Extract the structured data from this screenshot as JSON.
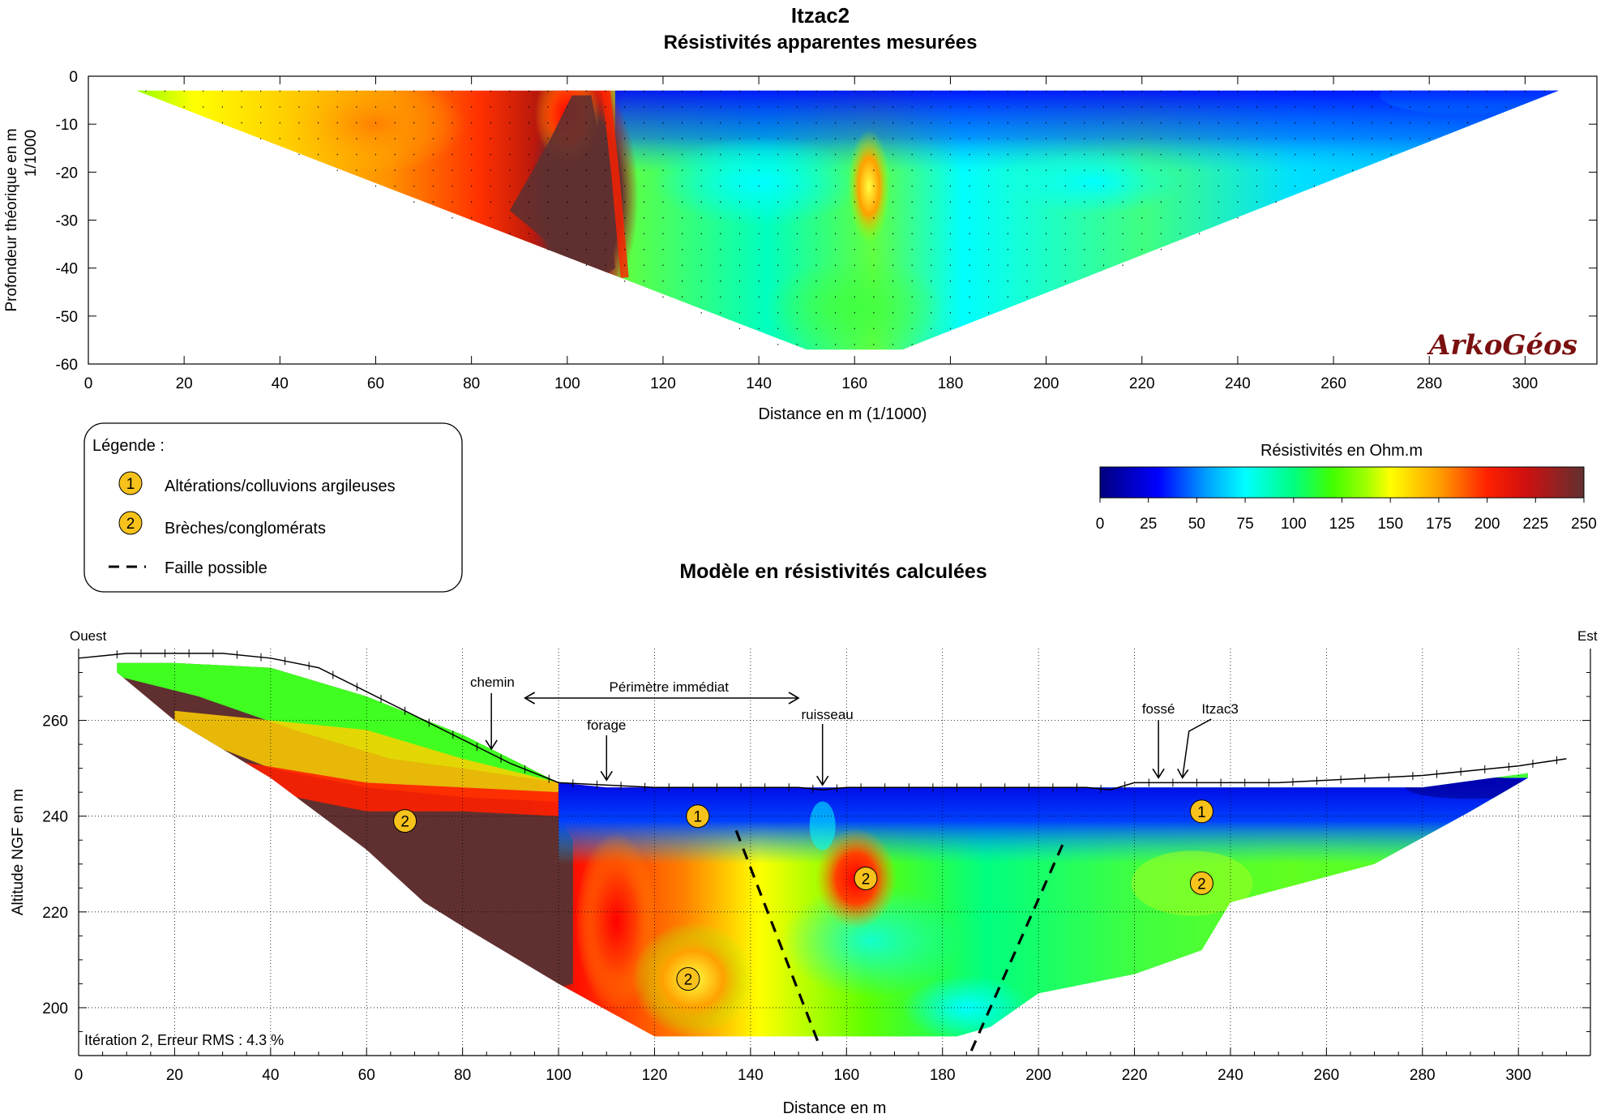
{
  "header": {
    "title": "Itzac2",
    "subtitle_top": "Résistivités apparentes mesurées",
    "subtitle_bottom": "Modèle en résistivités calculées",
    "logo": "ArkoGéos"
  },
  "colors": {
    "scale": [
      "#00007f",
      "#0000ff",
      "#00a0ff",
      "#00ffff",
      "#00ff80",
      "#40ff00",
      "#a0ff00",
      "#ffff00",
      "#ffa000",
      "#ff4000",
      "#ff0000",
      "#a01010",
      "#603030"
    ],
    "frame": "#000000"
  },
  "chart_data": [
    {
      "type": "heatmap",
      "title": "Résistivités apparentes mesurées",
      "xlabel": "Distance en m (1/1000)",
      "ylabel": "Profondeur théorique en m",
      "ylabel2": "1/1000",
      "xlim": [
        0,
        315
      ],
      "ylim": [
        -60,
        0
      ],
      "xticks": [
        0,
        20,
        40,
        60,
        80,
        100,
        120,
        140,
        160,
        180,
        200,
        220,
        240,
        260,
        280,
        300
      ],
      "yticks": [
        0,
        -10,
        -20,
        -30,
        -40,
        -50,
        -60
      ],
      "xticklabels": [
        "0",
        "20",
        "40",
        "60",
        "80",
        "100",
        "120",
        "140",
        "160",
        "180",
        "200",
        "220",
        "240",
        "260",
        "280",
        "300"
      ],
      "yticklabels": [
        "0",
        "-10",
        "-20",
        "-30",
        "-40",
        "-50",
        "-60"
      ],
      "section_outline": [
        [
          10,
          -3
        ],
        [
          307,
          -3
        ],
        [
          170,
          -57
        ],
        [
          150,
          -57
        ]
      ],
      "anomalies": [
        {
          "x": 103,
          "y": -25,
          "value": 250
        },
        {
          "x": 100,
          "y": -8,
          "value": 210
        },
        {
          "x": 60,
          "y": -10,
          "value": 170
        },
        {
          "x": 163,
          "y": -23,
          "value": 150
        },
        {
          "x": 290,
          "y": -4,
          "value": 10
        }
      ]
    },
    {
      "type": "heatmap",
      "title": "Modèle en résistivités calculées",
      "xlabel": "Distance en m",
      "ylabel": "Altitude NGF en m",
      "xlim": [
        0,
        315
      ],
      "ylim": [
        190,
        275
      ],
      "xticks": [
        0,
        20,
        40,
        60,
        80,
        100,
        120,
        140,
        160,
        180,
        200,
        220,
        240,
        260,
        280,
        300
      ],
      "yticks": [
        200,
        220,
        240,
        260
      ],
      "xticklabels": [
        "0",
        "20",
        "40",
        "60",
        "80",
        "100",
        "120",
        "140",
        "160",
        "180",
        "200",
        "220",
        "240",
        "260",
        "280",
        "300"
      ],
      "yticklabels": [
        "200",
        "220",
        "240",
        "260"
      ],
      "annotation_rms": "Itération 2, Erreur RMS : 4.3 %",
      "labels": {
        "west": "Ouest",
        "east": "Est",
        "chemin": "chemin",
        "perimetre": "Périmètre immédiat",
        "forage": "forage",
        "ruisseau": "ruisseau",
        "fosse": "fossé",
        "itzac3": "Itzac3"
      },
      "topography": [
        [
          0,
          273
        ],
        [
          10,
          274
        ],
        [
          20,
          274
        ],
        [
          30,
          274
        ],
        [
          40,
          273
        ],
        [
          50,
          271
        ],
        [
          60,
          266
        ],
        [
          70,
          261
        ],
        [
          80,
          256
        ],
        [
          90,
          251
        ],
        [
          100,
          247
        ],
        [
          110,
          246.5
        ],
        [
          120,
          246
        ],
        [
          130,
          246
        ],
        [
          140,
          246
        ],
        [
          150,
          246
        ],
        [
          155,
          245.5
        ],
        [
          160,
          246
        ],
        [
          170,
          246
        ],
        [
          180,
          246
        ],
        [
          190,
          246
        ],
        [
          200,
          246
        ],
        [
          210,
          246
        ],
        [
          215,
          245.5
        ],
        [
          220,
          247
        ],
        [
          230,
          247
        ],
        [
          240,
          247
        ],
        [
          250,
          247
        ],
        [
          260,
          247.5
        ],
        [
          270,
          248
        ],
        [
          280,
          248.5
        ],
        [
          290,
          249.5
        ],
        [
          300,
          250.5
        ],
        [
          310,
          252
        ]
      ],
      "markers": [
        {
          "label": "1",
          "x": 129,
          "y": 240
        },
        {
          "label": "1",
          "x": 234,
          "y": 241
        },
        {
          "label": "2",
          "x": 68,
          "y": 239
        },
        {
          "label": "2",
          "x": 164,
          "y": 227
        },
        {
          "label": "2",
          "x": 234,
          "y": 226
        },
        {
          "label": "2",
          "x": 127,
          "y": 206
        }
      ],
      "faults": [
        {
          "from": [
            137,
            237
          ],
          "to": [
            154,
            193
          ]
        },
        {
          "from": [
            205,
            234
          ],
          "to": [
            186,
            191
          ]
        }
      ]
    }
  ],
  "colorbar": {
    "title": "Résistivités en Ohm.m",
    "min": 0,
    "max": 250,
    "ticks": [
      "0",
      "25",
      "50",
      "75",
      "100",
      "125",
      "150",
      "175",
      "200",
      "225",
      "250"
    ]
  },
  "legend": {
    "title": "Légende :",
    "items": [
      {
        "symbol": "1",
        "label": "Altérations/colluvions argileuses"
      },
      {
        "symbol": "2",
        "label": "Brèches/conglomérats"
      },
      {
        "symbol": "dash",
        "label": "Faille possible"
      }
    ]
  }
}
